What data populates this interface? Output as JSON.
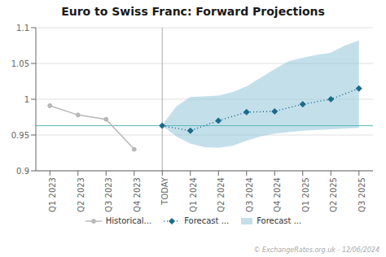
{
  "chart_data": {
    "type": "line",
    "title": "Euro to Swiss Franc: Forward Projections",
    "xlim": [
      -0.5,
      11.5
    ],
    "xticks": [
      {
        "value": 0,
        "label": "Q1 2023"
      },
      {
        "value": 1,
        "label": "Q2 2023"
      },
      {
        "value": 2,
        "label": "Q3 2023"
      },
      {
        "value": 3,
        "label": "Q4 2023"
      },
      {
        "value": 4,
        "label": "TODAY"
      },
      {
        "value": 5,
        "label": "Q1 2024"
      },
      {
        "value": 6,
        "label": "Q2 2024"
      },
      {
        "value": 7,
        "label": "Q3 2024"
      },
      {
        "value": 8,
        "label": "Q4 2024"
      },
      {
        "value": 9,
        "label": "Q1 2025"
      },
      {
        "value": 10,
        "label": "Q2 2025"
      },
      {
        "value": 11,
        "label": "Q3 2025"
      }
    ],
    "ylim": [
      0.9,
      1.1
    ],
    "yticks": [
      0.9,
      0.95,
      1.0,
      1.05,
      1.1
    ],
    "grid": "y",
    "legend": "bottom",
    "series": [
      {
        "name": "Historical...",
        "type": "line",
        "color": "#b8b8b8",
        "marker": "circle",
        "line_style": "solid",
        "x": [
          0,
          1,
          2,
          3
        ],
        "values": [
          0.991,
          0.978,
          0.972,
          0.93
        ]
      },
      {
        "name": "Forecast ...",
        "type": "line",
        "color": "#1a6b8a",
        "marker": "diamond",
        "line_style": "dotted",
        "x": [
          4,
          5,
          6,
          7,
          8,
          9,
          10,
          11
        ],
        "values": [
          0.963,
          0.956,
          0.97,
          0.982,
          0.983,
          0.993,
          1.0,
          1.015
        ]
      },
      {
        "name": "Forecast ...",
        "type": "band",
        "color": "#92c5d8",
        "x": [
          4,
          4.5,
          5,
          5.5,
          6,
          6.5,
          7,
          7.5,
          8,
          8.5,
          9,
          9.5,
          10,
          10.5,
          11
        ],
        "upper": [
          0.964,
          0.99,
          1.003,
          1.004,
          1.005,
          1.01,
          1.018,
          1.03,
          1.042,
          1.053,
          1.058,
          1.062,
          1.065,
          1.075,
          1.082
        ],
        "lower": [
          0.963,
          0.948,
          0.938,
          0.933,
          0.932,
          0.935,
          0.942,
          0.948,
          0.952,
          0.954,
          0.956,
          0.957,
          0.958,
          0.959,
          0.96
        ]
      }
    ],
    "reference_lines": [
      {
        "axis": "y",
        "value": 0.963,
        "color": "#5abcbc"
      },
      {
        "axis": "x",
        "value": 4,
        "color": "#aaaaaa"
      }
    ],
    "annotations": [
      {
        "text": "© ExchangeRates.org.uk - 12/06/2024",
        "color": "#aaaaaa"
      }
    ]
  }
}
